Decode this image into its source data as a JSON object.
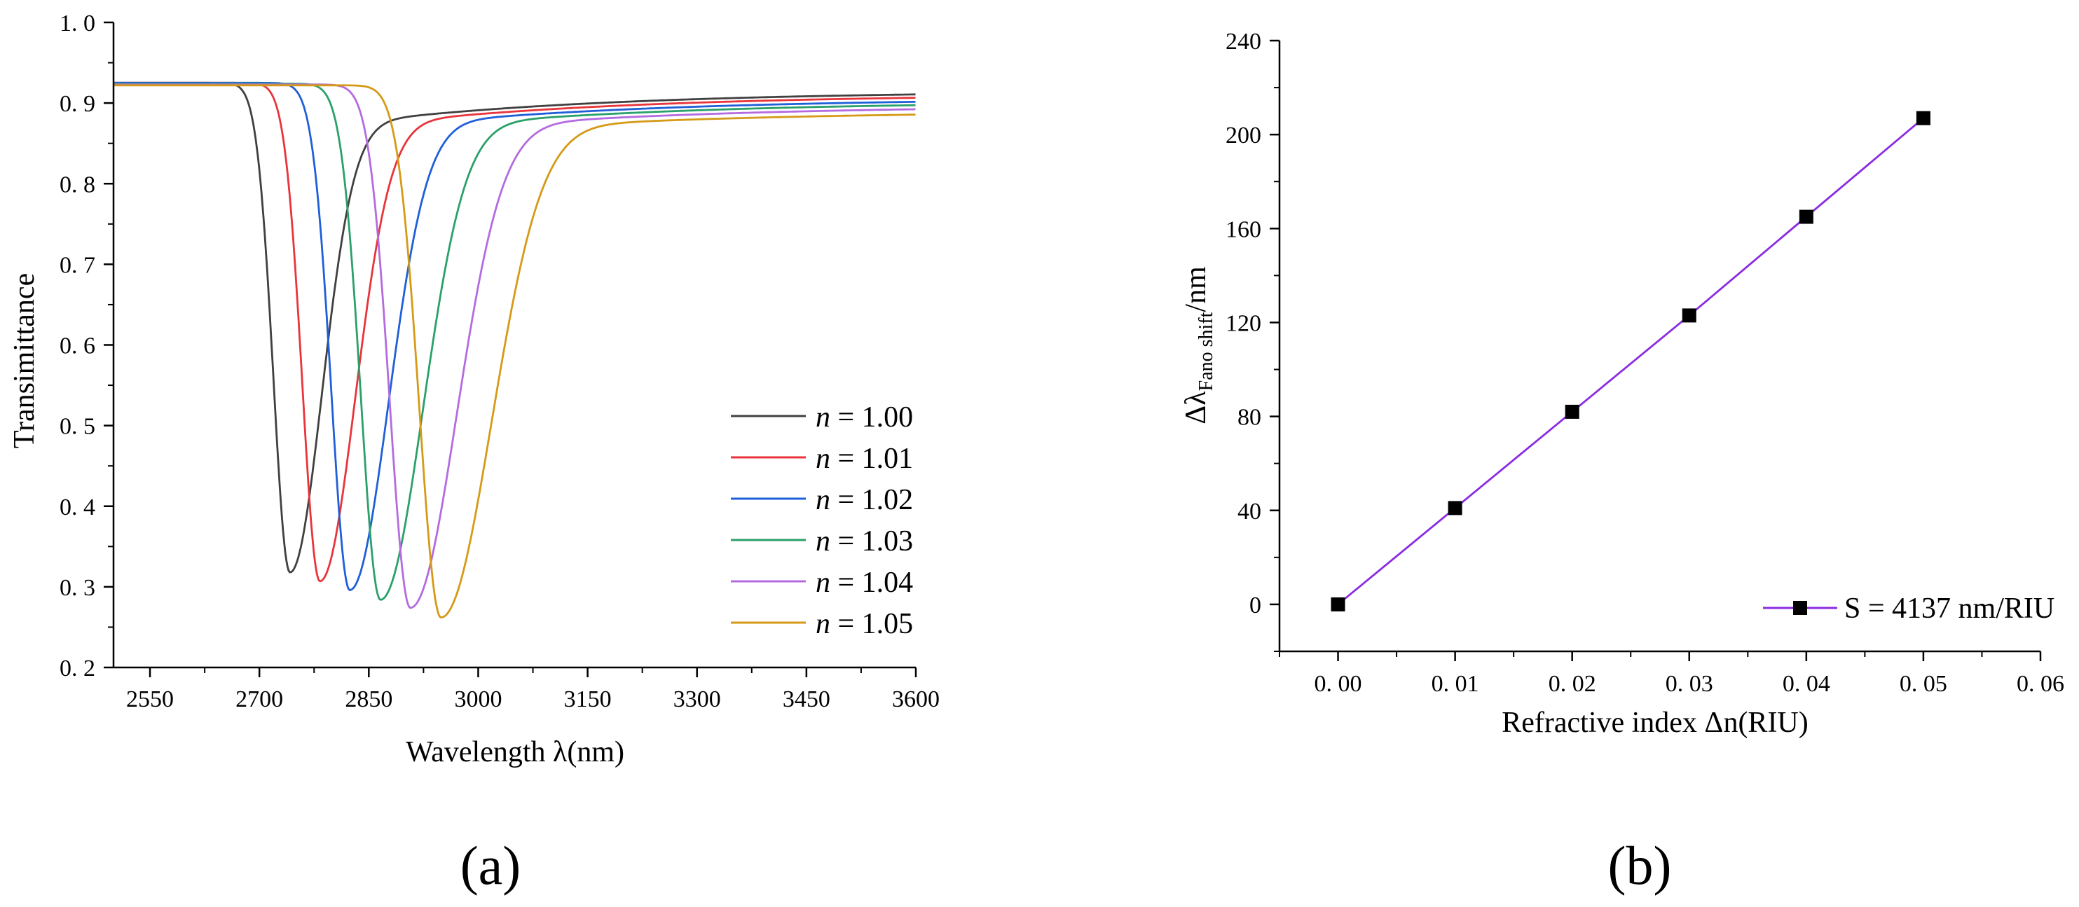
{
  "chart_data": [
    {
      "type": "line",
      "panel_label": "(a)",
      "xlabel": "Wavelength λ(nm)",
      "ylabel": "Transimittance",
      "xlim": [
        2500,
        3600
      ],
      "ylim": [
        0.2,
        1.0
      ],
      "xticks": [
        2550,
        2700,
        2850,
        3000,
        3150,
        3300,
        3450,
        3600
      ],
      "xtick_labels": [
        "2550",
        "2700",
        "2850",
        "3000",
        "3150",
        "3300",
        "3450",
        "3600"
      ],
      "yticks": [
        0.2,
        0.3,
        0.4,
        0.5,
        0.6,
        0.7,
        0.8,
        0.9,
        1.0
      ],
      "ytick_labels": [
        "0. 2",
        "0. 3",
        "0. 4",
        "0. 5",
        "0. 6",
        "0. 7",
        "0. 8",
        "0. 9",
        "1. 0"
      ],
      "legend_position": "lower-right",
      "legend_var": "n",
      "series": [
        {
          "name": "n = 1.00",
          "legend_value": "= 1.00",
          "color": "#404040",
          "dip_x": 2742,
          "dip_y": 0.318,
          "left_width": 32,
          "right_width": 58,
          "baseline": 0.925,
          "tail_end": 0.915
        },
        {
          "name": "n = 1.01",
          "legend_value": "= 1.01",
          "color": "#e8353b",
          "dip_x": 2783,
          "dip_y": 0.307,
          "left_width": 34,
          "right_width": 64,
          "baseline": 0.925,
          "tail_end": 0.911
        },
        {
          "name": "n = 1.02",
          "legend_value": "= 1.02",
          "color": "#1f5fd8",
          "dip_x": 2824,
          "dip_y": 0.296,
          "left_width": 36,
          "right_width": 70,
          "baseline": 0.925,
          "tail_end": 0.906
        },
        {
          "name": "n = 1.03",
          "legend_value": "= 1.03",
          "color": "#2aa06a",
          "dip_x": 2866,
          "dip_y": 0.284,
          "left_width": 38,
          "right_width": 77,
          "baseline": 0.924,
          "tail_end": 0.902
        },
        {
          "name": "n = 1.04",
          "legend_value": "= 1.04",
          "color": "#b46be0",
          "dip_x": 2907,
          "dip_y": 0.274,
          "left_width": 40,
          "right_width": 84,
          "baseline": 0.923,
          "tail_end": 0.897
        },
        {
          "name": "n = 1.05",
          "legend_value": "= 1.05",
          "color": "#d59a17",
          "dip_x": 2949,
          "dip_y": 0.262,
          "left_width": 42,
          "right_width": 92,
          "baseline": 0.922,
          "tail_end": 0.89
        }
      ]
    },
    {
      "type": "scatter",
      "panel_label": "(b)",
      "xlabel": "Refractive index Δn(RIU)",
      "ylabel_main": "Δλ",
      "ylabel_sub": "Fano shift",
      "ylabel_unit": "/nm",
      "xlim": [
        -0.005,
        0.06
      ],
      "ylim": [
        -20,
        240
      ],
      "xticks": [
        0.0,
        0.01,
        0.02,
        0.03,
        0.04,
        0.05,
        0.06
      ],
      "xtick_labels": [
        "0. 00",
        "0. 01",
        "0. 02",
        "0. 03",
        "0. 04",
        "0. 05",
        "0. 06"
      ],
      "yticks": [
        0,
        40,
        80,
        120,
        160,
        200,
        240
      ],
      "ytick_labels": [
        "0",
        "40",
        "80",
        "120",
        "160",
        "200",
        "240"
      ],
      "legend_position": "bottom-right",
      "series": [
        {
          "name": "S = 4137 nm/RIU",
          "color": "#8a2be2",
          "marker_color": "#000000",
          "x": [
            0.0,
            0.01,
            0.02,
            0.03,
            0.04,
            0.05
          ],
          "y": [
            0,
            41,
            82,
            123,
            165,
            207
          ]
        }
      ]
    }
  ]
}
